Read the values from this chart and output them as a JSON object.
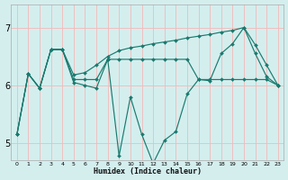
{
  "xlabel": "Humidex (Indice chaleur)",
  "line_color": "#1a7a6e",
  "background_color": "#d4eeee",
  "grid_color": "#f5b8b8",
  "xlim": [
    -0.5,
    23.5
  ],
  "ylim": [
    4.7,
    7.4
  ],
  "yticks": [
    5,
    6,
    7
  ],
  "xtick_labels": [
    "0",
    "1",
    "2",
    "3",
    "4",
    "5",
    "6",
    "7",
    "8",
    "9",
    "10",
    "11",
    "12",
    "13",
    "14",
    "15",
    "16",
    "17",
    "18",
    "19",
    "20",
    "21",
    "22",
    "23"
  ],
  "series": [
    [
      5.15,
      6.2,
      5.95,
      6.62,
      6.62,
      6.05,
      6.0,
      5.95,
      6.45,
      4.78,
      5.8,
      5.15,
      4.65,
      5.05,
      5.2,
      5.85,
      6.1,
      6.08,
      6.55,
      6.72,
      7.0,
      6.55,
      6.15,
      6.0
    ],
    [
      5.15,
      6.2,
      5.95,
      6.62,
      6.62,
      6.1,
      6.1,
      6.1,
      6.45,
      6.45,
      6.45,
      6.45,
      6.45,
      6.45,
      6.45,
      6.45,
      6.1,
      6.1,
      6.1,
      6.1,
      6.1,
      6.1,
      6.1,
      6.0
    ],
    [
      5.15,
      6.2,
      5.95,
      6.62,
      6.62,
      6.18,
      6.22,
      6.35,
      6.5,
      6.6,
      6.65,
      6.68,
      6.72,
      6.75,
      6.78,
      6.82,
      6.85,
      6.88,
      6.92,
      6.95,
      7.0,
      6.7,
      6.35,
      6.0
    ]
  ]
}
